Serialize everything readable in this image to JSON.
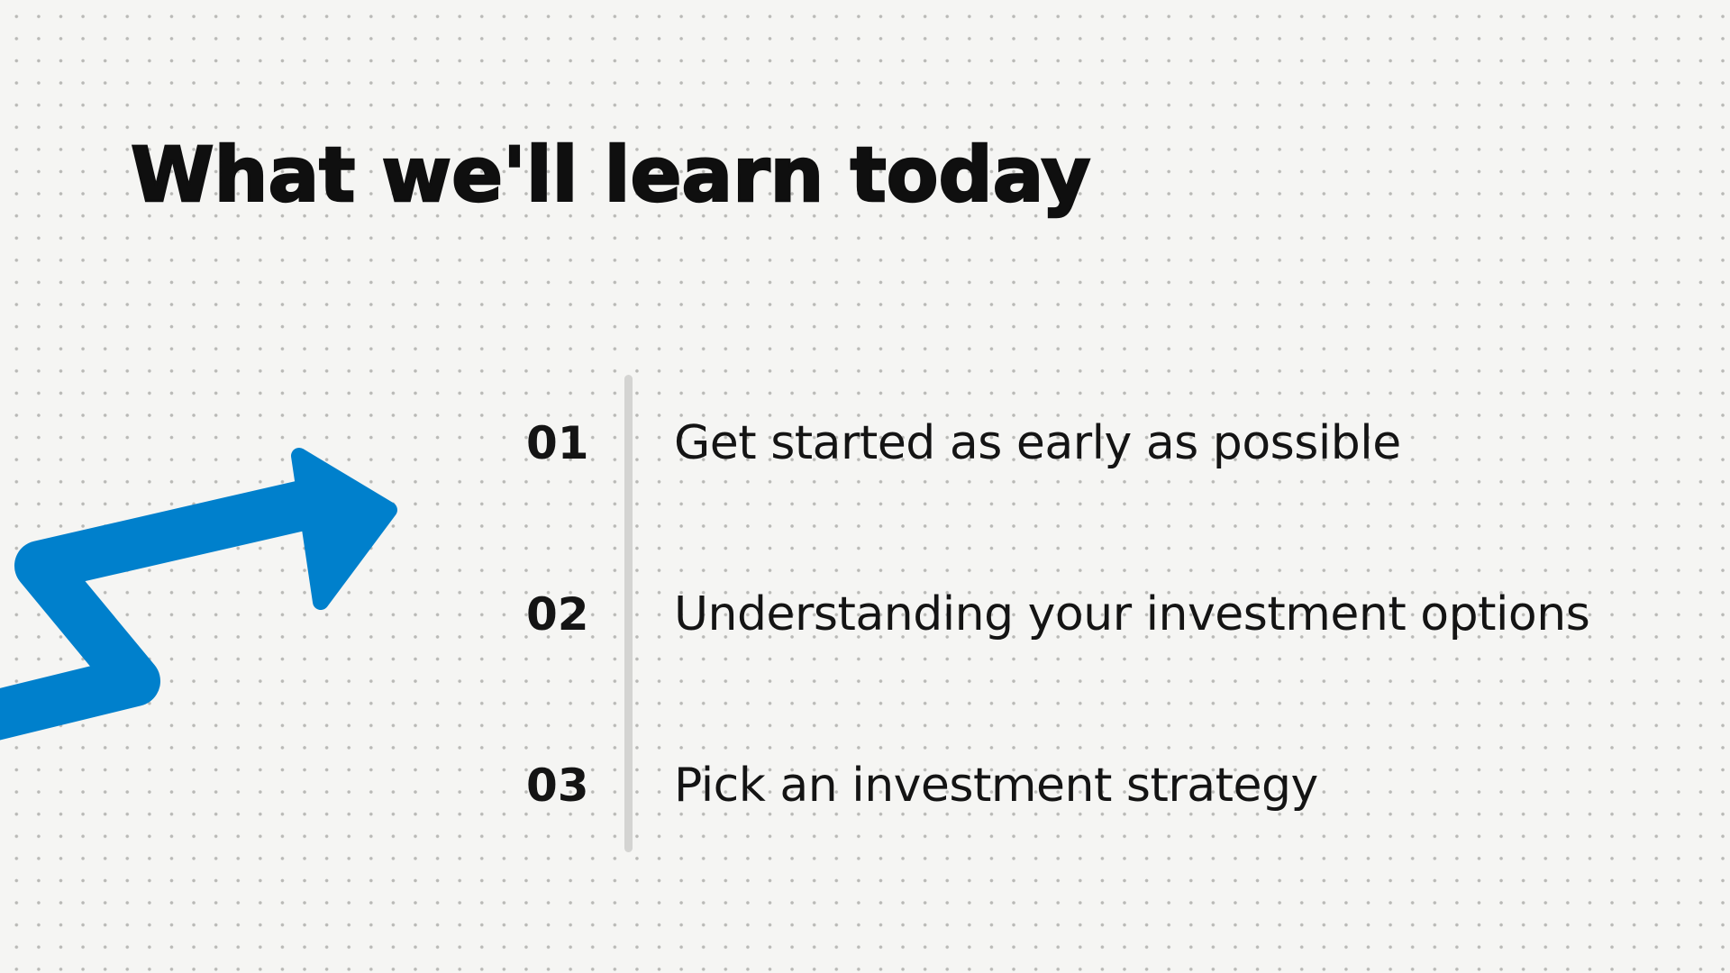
{
  "slide": {
    "title": "What we'll learn today",
    "items": [
      {
        "number": "01",
        "text": "Get started as early as possible"
      },
      {
        "number": "02",
        "text": "Understanding your investment options"
      },
      {
        "number": "03",
        "text": "Pick an investment strategy"
      }
    ],
    "arrow_icon": "zigzag-up-arrow-icon",
    "colors": {
      "accent": "#0080cc",
      "text": "#141414",
      "background": "#f5f5f3",
      "divider": "#d4d4d2"
    }
  }
}
